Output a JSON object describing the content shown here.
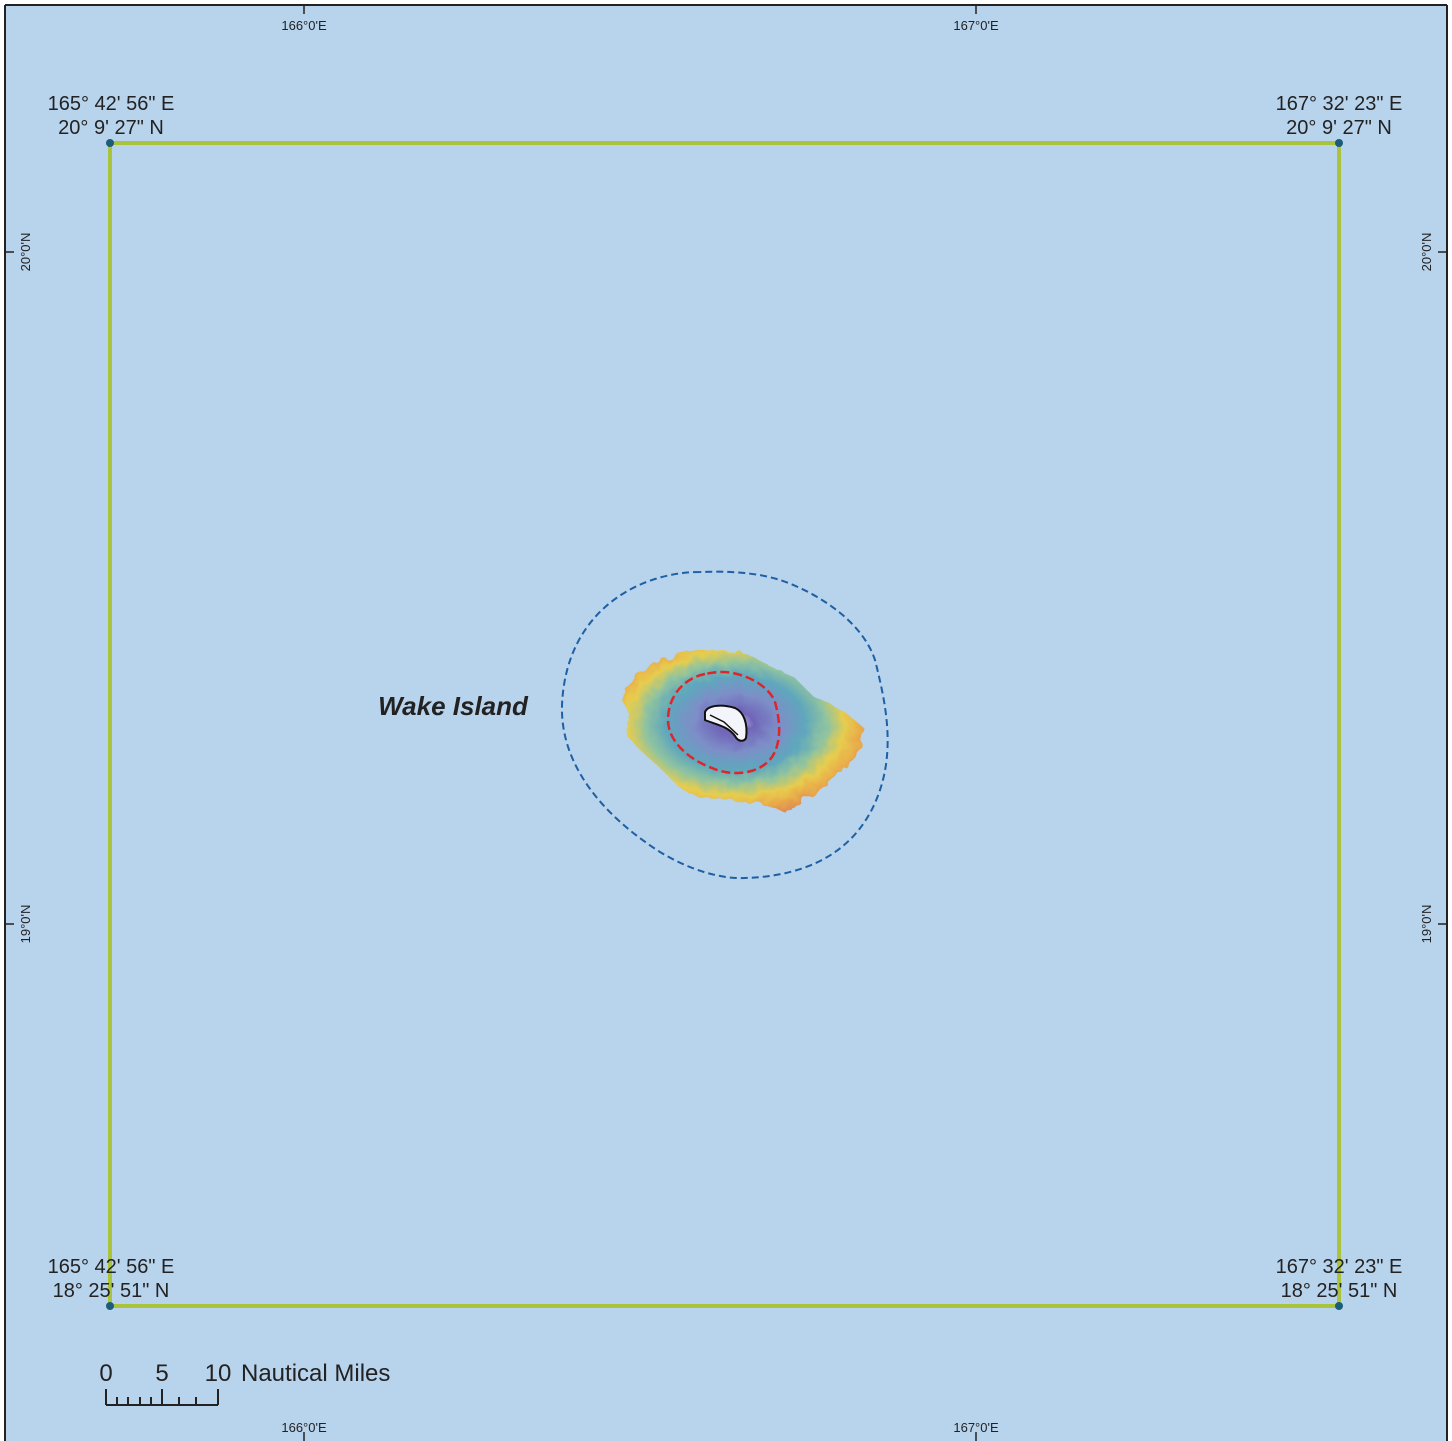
{
  "map": {
    "place_label": "Wake Island",
    "graticule": {
      "top_ticks": [
        "166°0'E",
        "167°0'E"
      ],
      "bottom_ticks": [
        "166°0'E",
        "167°0'E"
      ],
      "left_ticks": [
        "20°0'N",
        "19°0'N"
      ],
      "right_ticks": [
        "20°0'N",
        "19°0'N"
      ]
    },
    "corners": {
      "top_left": {
        "lon": "165° 42' 56\" E",
        "lat": "20° 9' 27\" N"
      },
      "top_right": {
        "lon": "167° 32' 23\" E",
        "lat": "20° 9' 27\" N"
      },
      "bottom_left": {
        "lon": "165° 42' 56\" E",
        "lat": "18° 25' 51\" N"
      },
      "bottom_right": {
        "lon": "167° 32' 23\" E",
        "lat": "18° 25' 51\" N"
      }
    },
    "scale_bar": {
      "labels": [
        "0",
        "5",
        "10"
      ],
      "unit": "Nautical Miles"
    },
    "colors": {
      "ocean": "#b8d3ec",
      "boundary": "#a9c43a",
      "corner_point": "#1b5d7a",
      "outer_boundary": "#1f5fa3",
      "inner_boundary": "#e0242a",
      "frame": "#222222"
    }
  }
}
